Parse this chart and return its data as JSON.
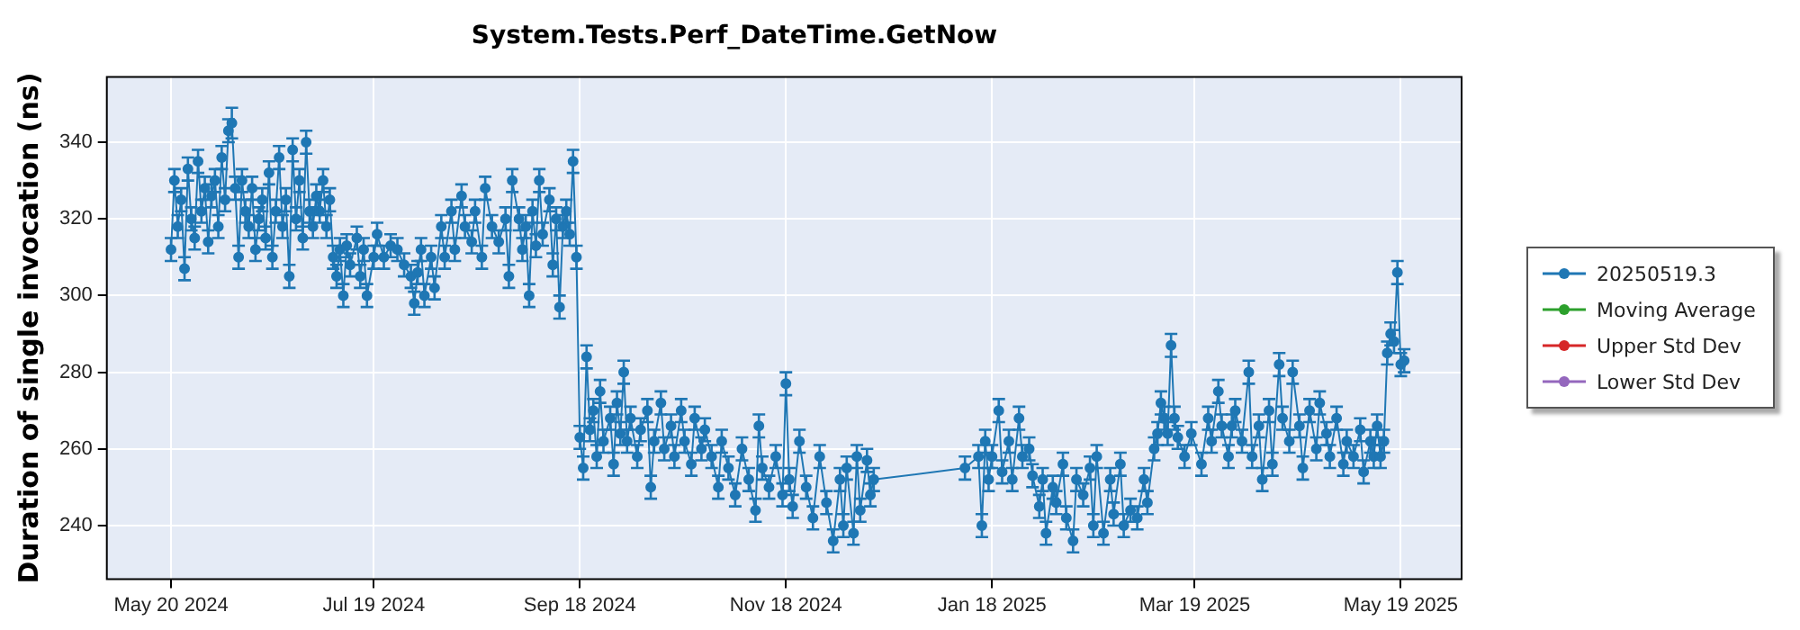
{
  "chart_data": {
    "type": "line",
    "title": "System.Tests.Perf_DateTime.GetNow",
    "ylabel": "Duration of single invocation (ns)",
    "xlim": [
      "2024-05-01",
      "2025-06-06"
    ],
    "ylim": [
      226,
      357
    ],
    "xticks": [
      {
        "value": "2024-05-20",
        "label": "May 20 2024"
      },
      {
        "value": "2024-07-19",
        "label": "Jul 19 2024"
      },
      {
        "value": "2024-09-18",
        "label": "Sep 18 2024"
      },
      {
        "value": "2024-11-18",
        "label": "Nov 18 2024"
      },
      {
        "value": "2025-01-18",
        "label": "Jan 18 2025"
      },
      {
        "value": "2025-03-19",
        "label": "Mar 19 2025"
      },
      {
        "value": "2025-05-19",
        "label": "May 19 2025"
      }
    ],
    "yticks": [
      240,
      260,
      280,
      300,
      320,
      340
    ],
    "grid": true,
    "legend": "right",
    "marker": "circle",
    "line_style": "solid",
    "series": [
      {
        "name": "20250519.3",
        "color": "#1f77b4",
        "x": [
          "2024-05-20",
          "2024-05-21",
          "2024-05-22",
          "2024-05-23",
          "2024-05-24",
          "2024-05-25",
          "2024-05-26",
          "2024-05-27",
          "2024-05-28",
          "2024-05-29",
          "2024-05-30",
          "2024-05-31",
          "2024-06-01",
          "2024-06-02",
          "2024-06-03",
          "2024-06-04",
          "2024-06-05",
          "2024-06-06",
          "2024-06-07",
          "2024-06-08",
          "2024-06-09",
          "2024-06-10",
          "2024-06-11",
          "2024-06-12",
          "2024-06-13",
          "2024-06-14",
          "2024-06-15",
          "2024-06-16",
          "2024-06-17",
          "2024-06-18",
          "2024-06-19",
          "2024-06-20",
          "2024-06-21",
          "2024-06-22",
          "2024-06-23",
          "2024-06-24",
          "2024-06-25",
          "2024-06-26",
          "2024-06-27",
          "2024-06-28",
          "2024-06-29",
          "2024-06-30",
          "2024-07-01",
          "2024-07-02",
          "2024-07-03",
          "2024-07-04",
          "2024-07-05",
          "2024-07-06",
          "2024-07-07",
          "2024-07-08",
          "2024-07-09",
          "2024-07-10",
          "2024-07-11",
          "2024-07-12",
          "2024-07-14",
          "2024-07-15",
          "2024-07-16",
          "2024-07-17",
          "2024-07-19",
          "2024-07-20",
          "2024-07-22",
          "2024-07-24",
          "2024-07-26",
          "2024-07-28",
          "2024-07-30",
          "2024-07-31",
          "2024-08-01",
          "2024-08-02",
          "2024-08-03",
          "2024-08-05",
          "2024-08-06",
          "2024-08-08",
          "2024-08-09",
          "2024-08-11",
          "2024-08-12",
          "2024-08-14",
          "2024-08-15",
          "2024-08-17",
          "2024-08-18",
          "2024-08-20",
          "2024-08-21",
          "2024-08-23",
          "2024-08-25",
          "2024-08-27",
          "2024-08-28",
          "2024-08-29",
          "2024-08-31",
          "2024-09-01",
          "2024-09-02",
          "2024-09-03",
          "2024-09-04",
          "2024-09-05",
          "2024-09-06",
          "2024-09-07",
          "2024-09-09",
          "2024-09-10",
          "2024-09-11",
          "2024-09-12",
          "2024-09-13",
          "2024-09-14",
          "2024-09-15",
          "2024-09-16",
          "2024-09-17",
          "2024-09-18",
          "2024-09-19",
          "2024-09-20",
          "2024-09-21",
          "2024-09-22",
          "2024-09-23",
          "2024-09-24",
          "2024-09-25",
          "2024-09-27",
          "2024-09-28",
          "2024-09-29",
          "2024-09-30",
          "2024-10-01",
          "2024-10-02",
          "2024-10-03",
          "2024-10-05",
          "2024-10-06",
          "2024-10-08",
          "2024-10-09",
          "2024-10-10",
          "2024-10-12",
          "2024-10-13",
          "2024-10-15",
          "2024-10-16",
          "2024-10-18",
          "2024-10-19",
          "2024-10-21",
          "2024-10-22",
          "2024-10-24",
          "2024-10-25",
          "2024-10-27",
          "2024-10-29",
          "2024-10-30",
          "2024-11-01",
          "2024-11-03",
          "2024-11-05",
          "2024-11-07",
          "2024-11-09",
          "2024-11-10",
          "2024-11-11",
          "2024-11-13",
          "2024-11-15",
          "2024-11-17",
          "2024-11-18",
          "2024-11-19",
          "2024-11-20",
          "2024-11-22",
          "2024-11-24",
          "2024-11-26",
          "2024-11-28",
          "2024-11-30",
          "2024-12-02",
          "2024-12-04",
          "2024-12-05",
          "2024-12-06",
          "2024-12-08",
          "2024-12-09",
          "2024-12-10",
          "2024-12-12",
          "2024-12-13",
          "2024-12-14",
          "2025-01-10",
          "2025-01-14",
          "2025-01-15",
          "2025-01-16",
          "2025-01-17",
          "2025-01-18",
          "2025-01-20",
          "2025-01-21",
          "2025-01-23",
          "2025-01-24",
          "2025-01-26",
          "2025-01-27",
          "2025-01-29",
          "2025-01-30",
          "2025-02-01",
          "2025-02-02",
          "2025-02-03",
          "2025-02-05",
          "2025-02-06",
          "2025-02-08",
          "2025-02-09",
          "2025-02-11",
          "2025-02-12",
          "2025-02-14",
          "2025-02-16",
          "2025-02-17",
          "2025-02-18",
          "2025-02-20",
          "2025-02-22",
          "2025-02-23",
          "2025-02-25",
          "2025-02-26",
          "2025-02-28",
          "2025-03-02",
          "2025-03-04",
          "2025-03-05",
          "2025-03-07",
          "2025-03-08",
          "2025-03-09",
          "2025-03-10",
          "2025-03-11",
          "2025-03-12",
          "2025-03-13",
          "2025-03-14",
          "2025-03-16",
          "2025-03-18",
          "2025-03-21",
          "2025-03-23",
          "2025-03-24",
          "2025-03-26",
          "2025-03-27",
          "2025-03-29",
          "2025-03-30",
          "2025-03-31",
          "2025-04-02",
          "2025-04-04",
          "2025-04-05",
          "2025-04-07",
          "2025-04-08",
          "2025-04-10",
          "2025-04-11",
          "2025-04-13",
          "2025-04-14",
          "2025-04-16",
          "2025-04-17",
          "2025-04-19",
          "2025-04-20",
          "2025-04-22",
          "2025-04-24",
          "2025-04-25",
          "2025-04-27",
          "2025-04-28",
          "2025-04-30",
          "2025-05-02",
          "2025-05-03",
          "2025-05-05",
          "2025-05-07",
          "2025-05-08",
          "2025-05-10",
          "2025-05-11",
          "2025-05-12",
          "2025-05-13",
          "2025-05-14",
          "2025-05-15",
          "2025-05-16",
          "2025-05-17",
          "2025-05-18",
          "2025-05-19",
          "2025-05-20"
        ],
        "values": [
          312,
          330,
          318,
          325,
          307,
          333,
          320,
          315,
          335,
          322,
          328,
          314,
          326,
          330,
          318,
          336,
          325,
          343,
          345,
          328,
          310,
          330,
          322,
          318,
          328,
          312,
          320,
          325,
          315,
          332,
          310,
          322,
          336,
          318,
          325,
          305,
          338,
          320,
          330,
          315,
          340,
          322,
          318,
          326,
          322,
          330,
          318,
          325,
          310,
          305,
          312,
          300,
          313,
          308,
          315,
          305,
          312,
          300,
          310,
          316,
          310,
          313,
          312,
          308,
          305,
          298,
          306,
          312,
          300,
          310,
          302,
          318,
          310,
          322,
          312,
          326,
          318,
          314,
          322,
          310,
          328,
          318,
          314,
          320,
          305,
          330,
          320,
          312,
          318,
          300,
          322,
          313,
          330,
          316,
          325,
          308,
          320,
          297,
          318,
          322,
          316,
          335,
          310,
          263,
          255,
          284,
          265,
          270,
          258,
          275,
          262,
          268,
          256,
          272,
          264,
          280,
          262,
          268,
          258,
          265,
          270,
          250,
          262,
          272,
          260,
          266,
          258,
          270,
          262,
          256,
          268,
          260,
          265,
          258,
          250,
          262,
          255,
          248,
          260,
          252,
          244,
          266,
          255,
          250,
          258,
          248,
          277,
          252,
          245,
          262,
          250,
          242,
          258,
          246,
          236,
          252,
          240,
          255,
          238,
          258,
          244,
          257,
          248,
          252,
          255,
          258,
          240,
          262,
          252,
          258,
          270,
          254,
          262,
          252,
          268,
          258,
          260,
          253,
          245,
          252,
          238,
          250,
          246,
          256,
          242,
          236,
          252,
          248,
          255,
          240,
          258,
          238,
          252,
          243,
          256,
          240,
          244,
          242,
          252,
          246,
          260,
          264,
          272,
          268,
          264,
          287,
          268,
          263,
          258,
          264,
          256,
          268,
          262,
          275,
          266,
          258,
          266,
          270,
          262,
          280,
          258,
          266,
          252,
          270,
          256,
          282,
          268,
          262,
          280,
          266,
          255,
          270,
          260,
          272,
          264,
          258,
          268,
          256,
          262,
          258,
          265,
          254,
          262,
          258,
          266,
          258,
          262,
          285,
          290,
          288,
          306,
          282,
          283
        ],
        "errors": [
          3,
          3,
          3,
          3,
          3,
          3,
          3,
          3,
          3,
          3,
          3,
          3,
          3,
          3,
          3,
          3,
          3,
          3,
          4,
          3,
          3,
          3,
          3,
          3,
          3,
          3,
          3,
          3,
          3,
          3,
          3,
          3,
          3,
          3,
          3,
          3,
          3,
          3,
          3,
          3,
          3,
          3,
          3,
          3,
          3,
          3,
          3,
          3,
          3,
          3,
          3,
          3,
          3,
          3,
          3,
          3,
          3,
          3,
          3,
          3,
          3,
          3,
          3,
          3,
          3,
          3,
          3,
          3,
          3,
          3,
          3,
          3,
          3,
          3,
          3,
          3,
          3,
          3,
          3,
          3,
          3,
          3,
          3,
          3,
          3,
          3,
          3,
          3,
          3,
          3,
          3,
          3,
          3,
          3,
          3,
          3,
          3,
          3,
          3,
          3,
          3,
          3,
          3,
          3,
          3,
          3,
          3,
          3,
          3,
          3,
          3,
          3,
          3,
          3,
          3,
          3,
          3,
          3,
          3,
          3,
          3,
          3,
          3,
          3,
          3,
          3,
          3,
          3,
          3,
          3,
          3,
          3,
          3,
          3,
          3,
          3,
          3,
          3,
          3,
          3,
          3,
          3,
          3,
          3,
          3,
          3,
          3,
          3,
          3,
          3,
          3,
          3,
          3,
          3,
          3,
          3,
          3,
          3,
          3,
          3,
          3,
          3,
          3,
          3,
          3,
          3,
          3,
          3,
          3,
          3,
          3,
          3,
          3,
          3,
          3,
          3,
          3,
          3,
          3,
          3,
          3,
          3,
          3,
          3,
          3,
          3,
          3,
          3,
          3,
          3,
          3,
          3,
          3,
          3,
          3,
          3,
          3,
          3,
          3,
          3,
          3,
          3,
          3,
          3,
          3,
          3,
          3,
          3,
          3,
          3,
          3,
          3,
          3,
          3,
          3,
          3,
          3,
          3,
          3,
          3,
          3,
          3,
          3,
          3,
          3,
          3,
          3,
          3,
          3,
          3,
          3,
          3,
          3,
          3,
          3,
          3,
          3,
          3,
          3,
          3,
          3,
          3,
          3,
          3,
          3,
          3,
          3,
          3,
          3,
          3,
          3,
          3,
          3
        ]
      },
      {
        "name": "Moving Average",
        "color": "#2ca02c"
      },
      {
        "name": "Upper Std Dev",
        "color": "#d62728"
      },
      {
        "name": "Lower Std Dev",
        "color": "#9467bd"
      }
    ]
  }
}
